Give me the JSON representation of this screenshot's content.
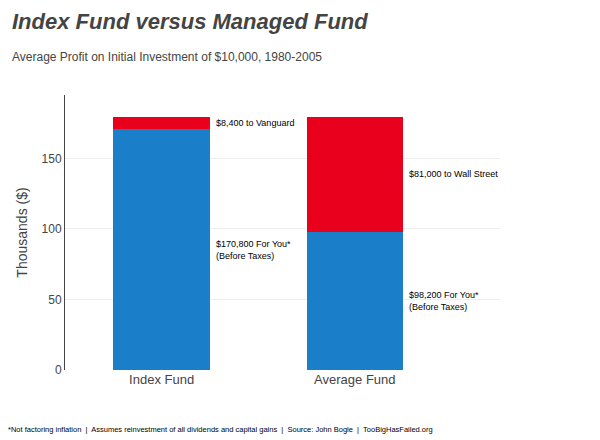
{
  "chart_data": {
    "type": "bar",
    "stacked": true,
    "title": "Index Fund versus Managed Fund",
    "subtitle": "Average Profit on Initial Investment of $10,000, 1980-2005",
    "footnote": "*Not factoring inflation  |  Assumes reinvestment of all dividends and capital gains  |  Source: John Bogle  |  TooBigHasFailed.org",
    "ylabel": "Thousands ($)",
    "categories": [
      "Index Fund",
      "Average Fund"
    ],
    "series": [
      {
        "color": "#1B7EC9",
        "values": [
          170.8,
          98.2
        ],
        "value_labels": [
          "$170,800 For You*\n(Before Taxes)",
          "$98,200 For You*\n(Before Taxes)"
        ]
      },
      {
        "color": "#E8001C",
        "values": [
          8.4,
          81.0
        ],
        "value_labels": [
          "$8,400 to Vanguard",
          "$81,000 to Wall Street"
        ]
      }
    ],
    "ylim": [
      0,
      195
    ],
    "yticks": [
      0,
      50,
      100,
      150
    ],
    "grid": true,
    "data_labels": true
  }
}
